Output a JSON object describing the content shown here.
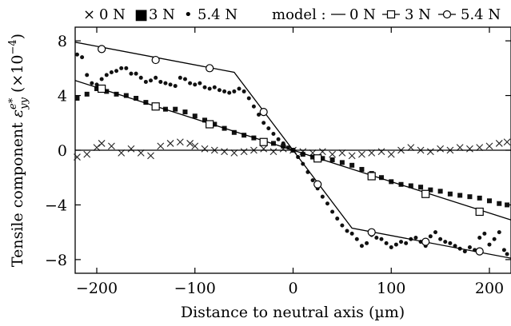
{
  "chart_data": {
    "type": "scatter",
    "title": "",
    "xlabel": "Distance to neutral axis (µm)",
    "ylabel_main": "Tensile component ",
    "ylabel_symbol": "ε",
    "ylabel_sup": "e*",
    "ylabel_sub": "yy",
    "ylabel_unit_open": " (×10",
    "ylabel_unit_exp": "−4",
    "ylabel_unit_close": ")",
    "xlim": [
      -222,
      222
    ],
    "ylim": [
      -9,
      9
    ],
    "xticks": [
      -200,
      -100,
      0,
      100,
      200
    ],
    "xtick_labels": [
      "−200",
      "−100",
      "0",
      "100",
      "200"
    ],
    "yticks": [
      8,
      4,
      0,
      -4,
      -8
    ],
    "ytick_labels": [
      "8",
      "4",
      "0",
      "−4",
      "−8"
    ],
    "grid": false,
    "legend_placement": "top",
    "legend": {
      "measured": [
        {
          "marker": "×",
          "label": "0 N"
        },
        {
          "marker": "■",
          "label": "3 N"
        },
        {
          "marker": "•",
          "label": "5.4 N"
        }
      ],
      "model_prefix": "model :",
      "model": [
        {
          "label": "0 N",
          "marker": "none"
        },
        {
          "label": "3 N",
          "marker": "square-open"
        },
        {
          "label": "5.4 N",
          "marker": "circle-open"
        }
      ]
    },
    "series": [
      {
        "name": "0 N",
        "kind": "measured",
        "marker": "cross",
        "points": [
          [
            -220,
            -0.5
          ],
          [
            -210,
            -0.3
          ],
          [
            -200,
            0.2
          ],
          [
            -195,
            0.5
          ],
          [
            -185,
            0.3
          ],
          [
            -175,
            -0.2
          ],
          [
            -165,
            0.1
          ],
          [
            -155,
            -0.2
          ],
          [
            -145,
            -0.4
          ],
          [
            -135,
            0.3
          ],
          [
            -125,
            0.5
          ],
          [
            -115,
            0.6
          ],
          [
            -105,
            0.5
          ],
          [
            -100,
            0.3
          ],
          [
            -90,
            0.1
          ],
          [
            -80,
            0.0
          ],
          [
            -70,
            -0.1
          ],
          [
            -60,
            -0.2
          ],
          [
            -50,
            -0.1
          ],
          [
            -40,
            0.0
          ],
          [
            -30,
            0.1
          ],
          [
            -20,
            -0.1
          ],
          [
            -10,
            0.1
          ],
          [
            0,
            0.0
          ],
          [
            10,
            -0.1
          ],
          [
            20,
            -0.2
          ],
          [
            30,
            -0.1
          ],
          [
            40,
            -0.3
          ],
          [
            50,
            -0.2
          ],
          [
            60,
            -0.4
          ],
          [
            70,
            -0.3
          ],
          [
            80,
            -0.2
          ],
          [
            90,
            -0.1
          ],
          [
            100,
            -0.3
          ],
          [
            110,
            0.0
          ],
          [
            120,
            0.2
          ],
          [
            130,
            0.0
          ],
          [
            140,
            -0.1
          ],
          [
            150,
            0.1
          ],
          [
            160,
            0.0
          ],
          [
            170,
            0.2
          ],
          [
            180,
            0.1
          ],
          [
            190,
            0.2
          ],
          [
            200,
            0.3
          ],
          [
            210,
            0.5
          ],
          [
            218,
            0.6
          ]
        ]
      },
      {
        "name": "3 N",
        "kind": "measured",
        "marker": "square-filled",
        "points": [
          [
            -220,
            3.8
          ],
          [
            -210,
            4.1
          ],
          [
            -200,
            4.5
          ],
          [
            -190,
            4.3
          ],
          [
            -180,
            4.1
          ],
          [
            -170,
            4.0
          ],
          [
            -160,
            3.8
          ],
          [
            -150,
            3.5
          ],
          [
            -140,
            3.2
          ],
          [
            -130,
            3.0
          ],
          [
            -120,
            3.0
          ],
          [
            -110,
            2.8
          ],
          [
            -100,
            2.5
          ],
          [
            -90,
            2.2
          ],
          [
            -80,
            1.9
          ],
          [
            -70,
            1.6
          ],
          [
            -60,
            1.3
          ],
          [
            -50,
            1.1
          ],
          [
            -40,
            0.9
          ],
          [
            -30,
            0.7
          ],
          [
            -20,
            0.5
          ],
          [
            -10,
            0.3
          ],
          [
            0,
            0.0
          ],
          [
            10,
            -0.3
          ],
          [
            20,
            -0.5
          ],
          [
            30,
            -0.6
          ],
          [
            40,
            -0.7
          ],
          [
            50,
            -0.9
          ],
          [
            60,
            -1.1
          ],
          [
            70,
            -1.4
          ],
          [
            80,
            -1.7
          ],
          [
            90,
            -2.0
          ],
          [
            100,
            -2.3
          ],
          [
            110,
            -2.5
          ],
          [
            120,
            -2.6
          ],
          [
            130,
            -2.7
          ],
          [
            140,
            -2.9
          ],
          [
            150,
            -3.0
          ],
          [
            160,
            -3.2
          ],
          [
            170,
            -3.3
          ],
          [
            180,
            -3.4
          ],
          [
            190,
            -3.5
          ],
          [
            200,
            -3.7
          ],
          [
            210,
            -3.9
          ],
          [
            218,
            -4.0
          ]
        ]
      },
      {
        "name": "5.4 N",
        "kind": "measured",
        "marker": "dot",
        "points": [
          [
            -220,
            7.0
          ],
          [
            -215,
            6.8
          ],
          [
            -210,
            5.5
          ],
          [
            -205,
            4.9
          ],
          [
            -200,
            4.8
          ],
          [
            -195,
            5.2
          ],
          [
            -190,
            5.5
          ],
          [
            -185,
            5.7
          ],
          [
            -180,
            5.8
          ],
          [
            -175,
            6.0
          ],
          [
            -170,
            6.0
          ],
          [
            -165,
            5.6
          ],
          [
            -160,
            5.6
          ],
          [
            -155,
            5.3
          ],
          [
            -150,
            5.0
          ],
          [
            -145,
            5.1
          ],
          [
            -140,
            5.3
          ],
          [
            -135,
            5.0
          ],
          [
            -130,
            4.9
          ],
          [
            -125,
            4.8
          ],
          [
            -120,
            4.7
          ],
          [
            -115,
            5.3
          ],
          [
            -110,
            5.2
          ],
          [
            -105,
            4.9
          ],
          [
            -100,
            4.8
          ],
          [
            -95,
            4.9
          ],
          [
            -90,
            4.6
          ],
          [
            -85,
            4.5
          ],
          [
            -80,
            4.6
          ],
          [
            -75,
            4.4
          ],
          [
            -70,
            4.3
          ],
          [
            -65,
            4.2
          ],
          [
            -60,
            4.3
          ],
          [
            -55,
            4.5
          ],
          [
            -50,
            4.3
          ],
          [
            -45,
            3.8
          ],
          [
            -40,
            3.2
          ],
          [
            -35,
            2.6
          ],
          [
            -30,
            2.0
          ],
          [
            -25,
            1.6
          ],
          [
            -20,
            1.2
          ],
          [
            -15,
            0.8
          ],
          [
            -10,
            0.5
          ],
          [
            -5,
            0.2
          ],
          [
            0,
            0.0
          ],
          [
            5,
            -0.5
          ],
          [
            10,
            -1.0
          ],
          [
            15,
            -1.6
          ],
          [
            20,
            -2.2
          ],
          [
            25,
            -2.8
          ],
          [
            30,
            -3.4
          ],
          [
            35,
            -3.9
          ],
          [
            40,
            -4.5
          ],
          [
            45,
            -5.0
          ],
          [
            50,
            -5.5
          ],
          [
            55,
            -5.9
          ],
          [
            60,
            -6.1
          ],
          [
            65,
            -6.5
          ],
          [
            70,
            -7.0
          ],
          [
            75,
            -6.8
          ],
          [
            80,
            -6.2
          ],
          [
            85,
            -6.4
          ],
          [
            90,
            -6.5
          ],
          [
            95,
            -6.8
          ],
          [
            100,
            -7.1
          ],
          [
            105,
            -6.9
          ],
          [
            110,
            -6.7
          ],
          [
            115,
            -6.8
          ],
          [
            120,
            -6.5
          ],
          [
            125,
            -6.4
          ],
          [
            130,
            -6.7
          ],
          [
            135,
            -7.0
          ],
          [
            140,
            -6.3
          ],
          [
            145,
            -6.0
          ],
          [
            150,
            -6.5
          ],
          [
            155,
            -6.7
          ],
          [
            160,
            -6.8
          ],
          [
            165,
            -7.0
          ],
          [
            170,
            -7.2
          ],
          [
            175,
            -7.4
          ],
          [
            180,
            -7.1
          ],
          [
            185,
            -7.3
          ],
          [
            190,
            -6.4
          ],
          [
            195,
            -6.1
          ],
          [
            200,
            -6.9
          ],
          [
            205,
            -6.5
          ],
          [
            210,
            -6.0
          ],
          [
            215,
            -7.3
          ],
          [
            218,
            -7.6
          ]
        ]
      },
      {
        "name": "0 N",
        "kind": "model",
        "marker": "none",
        "points": [
          [
            -222,
            0.0
          ],
          [
            222,
            0.0
          ]
        ]
      },
      {
        "name": "3 N",
        "kind": "model",
        "marker": "square-open",
        "points": [
          [
            -222,
            5.1
          ],
          [
            222,
            -5.1
          ]
        ],
        "markers": [
          [
            -195,
            4.5
          ],
          [
            -140,
            3.2
          ],
          [
            -85,
            1.9
          ],
          [
            -30,
            0.6
          ],
          [
            25,
            -0.6
          ],
          [
            80,
            -1.9
          ],
          [
            135,
            -3.2
          ],
          [
            190,
            -4.5
          ]
        ]
      },
      {
        "name": "5.4 N",
        "kind": "model",
        "marker": "circle-open",
        "points": [
          [
            -222,
            7.9
          ],
          [
            -60,
            5.7
          ],
          [
            60,
            -5.7
          ],
          [
            222,
            -7.9
          ]
        ],
        "markers": [
          [
            -195,
            7.4
          ],
          [
            -140,
            6.6
          ],
          [
            -85,
            6.0
          ],
          [
            -30,
            2.8
          ],
          [
            25,
            -2.5
          ],
          [
            80,
            -6.0
          ],
          [
            135,
            -6.7
          ],
          [
            190,
            -7.4
          ]
        ]
      }
    ]
  }
}
